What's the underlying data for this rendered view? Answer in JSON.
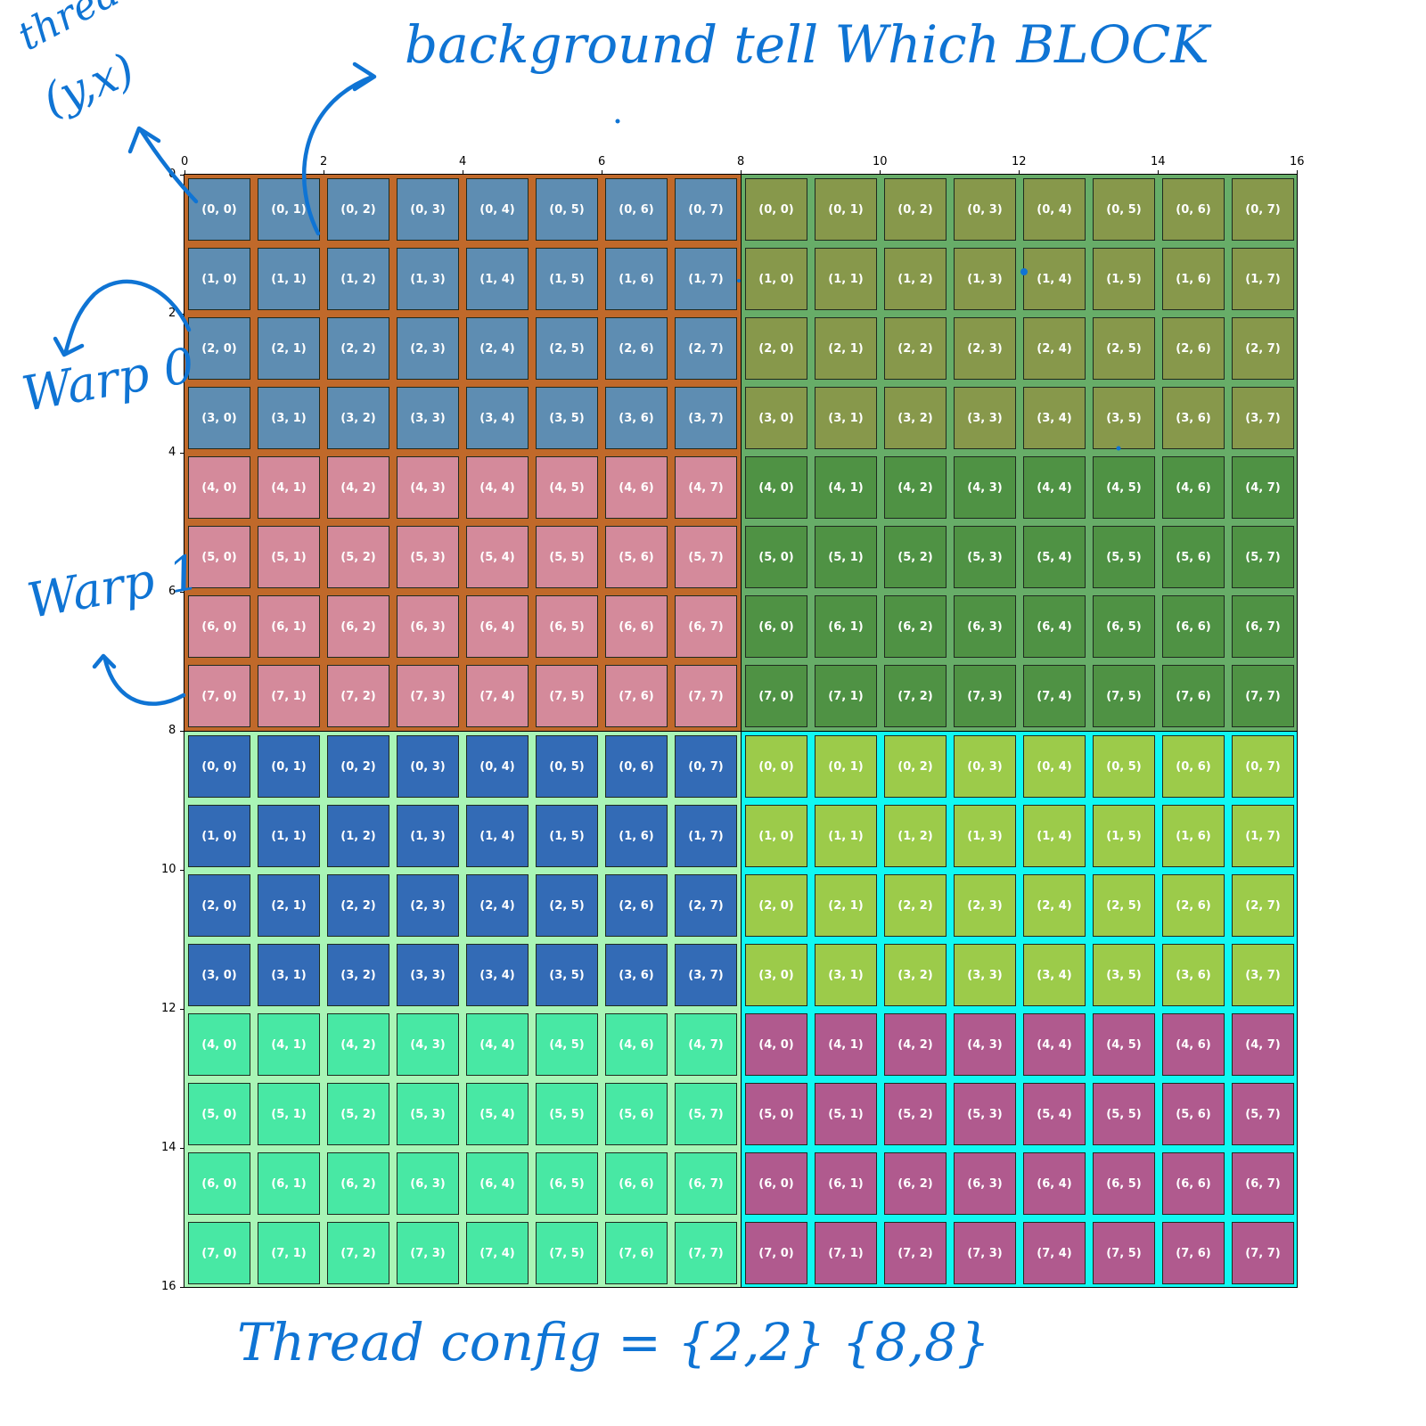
{
  "axes": {
    "x_ticks": [
      "0",
      "2",
      "4",
      "6",
      "8",
      "10",
      "12",
      "14",
      "16"
    ],
    "y_ticks": [
      "0",
      "2",
      "4",
      "6",
      "8",
      "10",
      "12",
      "14",
      "16"
    ],
    "xlim": [
      0,
      16
    ],
    "ylim": [
      0,
      16
    ],
    "x_axis_position": "top",
    "y_inverted": true
  },
  "blocks": [
    {
      "block": "(0, 0)",
      "background": "#c0692a",
      "warps": [
        {
          "rows": [
            0,
            1,
            2,
            3
          ],
          "color": "#5e8db2"
        },
        {
          "rows": [
            4,
            5,
            6,
            7
          ],
          "color": "#d48a9b"
        }
      ]
    },
    {
      "block": "(0, 1)",
      "background": "#67ad68",
      "warps": [
        {
          "rows": [
            0,
            1,
            2,
            3
          ],
          "color": "#87984b"
        },
        {
          "rows": [
            4,
            5,
            6,
            7
          ],
          "color": "#4f9244"
        }
      ]
    },
    {
      "block": "(1, 0)",
      "background": "#a9f5b6",
      "warps": [
        {
          "rows": [
            0,
            1,
            2,
            3
          ],
          "color": "#336bb6"
        },
        {
          "rows": [
            4,
            5,
            6,
            7
          ],
          "color": "#48e8a4"
        }
      ]
    },
    {
      "block": "(1, 1)",
      "background": "#10f8f2",
      "warps": [
        {
          "rows": [
            0,
            1,
            2,
            3
          ],
          "color": "#9ccb4a"
        },
        {
          "rows": [
            4,
            5,
            6,
            7
          ],
          "color": "#b05a8e"
        }
      ]
    }
  ],
  "block_dim": [
    8,
    8
  ],
  "annotations": {
    "thread": "thread",
    "yx": "(y,x)",
    "top_note": "background tell Which BLOCK",
    "warp0": "Warp 0",
    "warp1": "Warp 1",
    "bottom_note": "Thread config = {2,2} {8,8}"
  }
}
